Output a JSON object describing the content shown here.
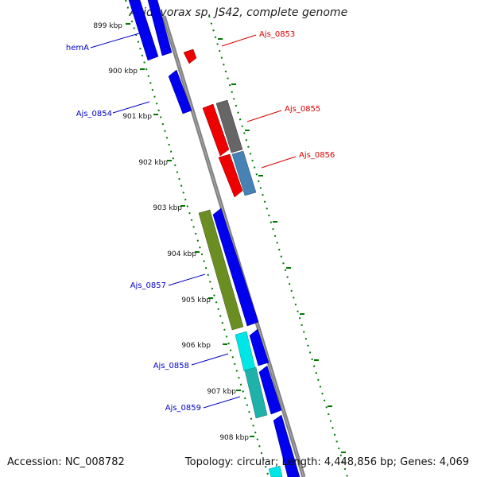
{
  "title": "Acidovorax sp. JS42, complete genome",
  "footer": {
    "accession": "Accession: NC_008782",
    "summary": "Topology: circular; Length: 4,448,856 bp; Genes: 4,069"
  },
  "axis": {
    "ticks": [
      "899 kbp",
      "900 kbp",
      "901 kbp",
      "902 kbp",
      "903 kbp",
      "904 kbp",
      "905 kbp",
      "906 kbp",
      "907 kbp",
      "908 kbp"
    ]
  },
  "colors": {
    "forward_label": "#0000cc",
    "reverse_label": "#dd0000",
    "backbone": "#808080",
    "tick_green": "#007700",
    "cds_blue": "#0000ee",
    "cds_red": "#ee0000",
    "cds_gray": "#666666",
    "cds_steel": "#4682b4",
    "cds_olive": "#6b8e23",
    "cds_cyan": "#00e5e5",
    "cds_darkcyan": "#20b2aa"
  },
  "labels": [
    {
      "text": "hemA",
      "strand": "forward"
    },
    {
      "text": "Ajs_0853",
      "strand": "reverse"
    },
    {
      "text": "Ajs_0854",
      "strand": "forward"
    },
    {
      "text": "Ajs_0855",
      "strand": "reverse"
    },
    {
      "text": "Ajs_0856",
      "strand": "reverse"
    },
    {
      "text": "Ajs_0857",
      "strand": "forward"
    },
    {
      "text": "Ajs_0858",
      "strand": "forward"
    },
    {
      "text": "Ajs_0859",
      "strand": "forward"
    }
  ]
}
